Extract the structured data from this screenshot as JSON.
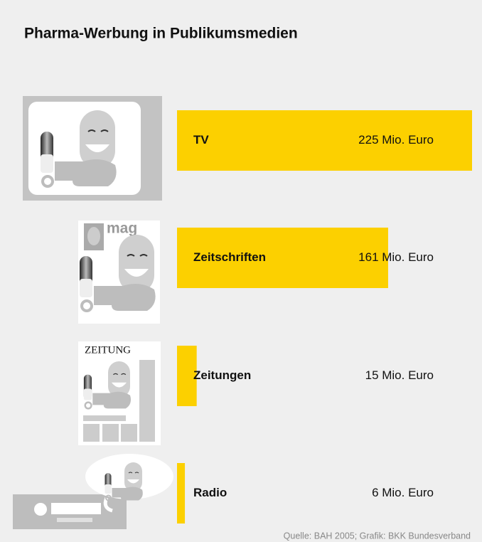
{
  "chart_data": {
    "type": "bar",
    "orientation": "horizontal",
    "title": "Pharma-Werbung in Publikumsmedien",
    "categories": [
      "TV",
      "Zeitschriften",
      "Zeitungen",
      "Radio"
    ],
    "values": [
      225,
      161,
      15,
      6
    ],
    "value_labels": [
      "225 Mio. Euro",
      "161 Mio. Euro",
      "15 Mio. Euro",
      "6 Mio. Euro"
    ],
    "color": "#fcd000",
    "icon_labels": [
      "mag",
      "ZEITUNG"
    ],
    "source": "Quelle: BAH 2005; Grafik: BKK Bundesverband"
  }
}
